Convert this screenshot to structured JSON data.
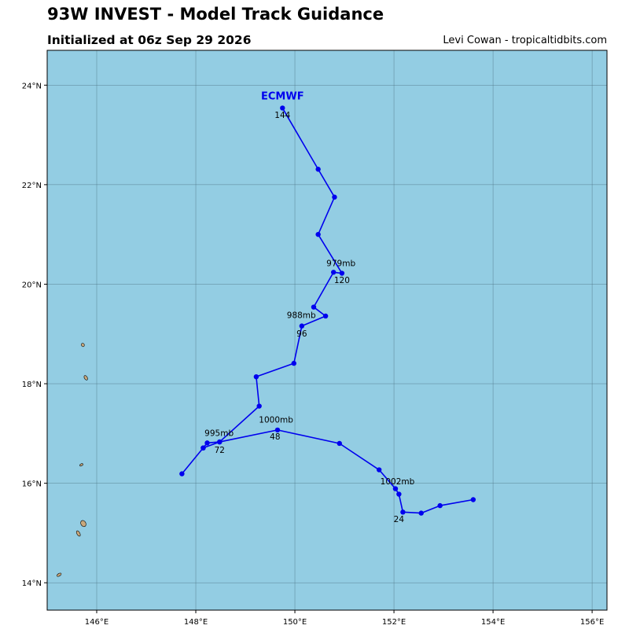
{
  "header": {
    "title": "93W INVEST - Model Track Guidance",
    "subtitle": "Initialized at 06z Sep 29 2026",
    "credit": "Levi Cowan - tropicaltidbits.com"
  },
  "colors": {
    "ocean": "#93cde3",
    "track": "#0000ee",
    "land": "#c9a87c",
    "grid": "#4a6f80"
  },
  "map": {
    "lon_range": [
      145.0,
      156.3
    ],
    "lat_range": [
      13.45,
      24.7
    ],
    "lon_ticks": [
      {
        "value": 146,
        "label": "146°E"
      },
      {
        "value": 148,
        "label": "148°E"
      },
      {
        "value": 150,
        "label": "150°E"
      },
      {
        "value": 152,
        "label": "152°E"
      },
      {
        "value": 154,
        "label": "154°E"
      },
      {
        "value": 156,
        "label": "156°E"
      }
    ],
    "lat_ticks": [
      {
        "value": 14,
        "label": "14°N"
      },
      {
        "value": 16,
        "label": "16°N"
      },
      {
        "value": 18,
        "label": "18°N"
      },
      {
        "value": 20,
        "label": "20°N"
      },
      {
        "value": 22,
        "label": "22°N"
      },
      {
        "value": 24,
        "label": "24°N"
      }
    ],
    "grid": true,
    "islands": [
      {
        "name": "island-a",
        "lon": 145.72,
        "lat": 18.78,
        "w": 0.06,
        "h": 0.07
      },
      {
        "name": "island-b",
        "lon": 145.78,
        "lat": 18.12,
        "w": 0.06,
        "h": 0.1
      },
      {
        "name": "island-c",
        "lon": 145.69,
        "lat": 16.37,
        "w": 0.07,
        "h": 0.04
      },
      {
        "name": "island-d",
        "lon": 145.73,
        "lat": 15.19,
        "w": 0.1,
        "h": 0.13
      },
      {
        "name": "island-e",
        "lon": 145.63,
        "lat": 14.99,
        "w": 0.06,
        "h": 0.12
      },
      {
        "name": "island-f",
        "lon": 145.24,
        "lat": 14.16,
        "w": 0.1,
        "h": 0.05
      }
    ]
  },
  "chart_data": {
    "type": "line",
    "series": [
      {
        "name": "ECMWF",
        "points": [
          {
            "lon": 153.6,
            "lat": 15.67
          },
          {
            "lon": 152.93,
            "lat": 15.55
          },
          {
            "lon": 152.55,
            "lat": 15.4
          },
          {
            "lon": 152.18,
            "lat": 15.42
          },
          {
            "lon": 152.1,
            "lat": 15.78
          },
          {
            "lon": 152.03,
            "lat": 15.89
          },
          {
            "lon": 151.7,
            "lat": 16.27
          },
          {
            "lon": 150.9,
            "lat": 16.8
          },
          {
            "lon": 149.65,
            "lat": 17.07
          },
          {
            "lon": 148.48,
            "lat": 16.83
          },
          {
            "lon": 148.23,
            "lat": 16.81
          },
          {
            "lon": 148.15,
            "lat": 16.71
          },
          {
            "lon": 147.72,
            "lat": 16.19
          },
          {
            "lon": 148.15,
            "lat": 16.71
          },
          {
            "lon": 148.48,
            "lat": 16.83
          },
          {
            "lon": 149.28,
            "lat": 17.55
          },
          {
            "lon": 149.22,
            "lat": 18.14
          },
          {
            "lon": 149.98,
            "lat": 18.41
          },
          {
            "lon": 150.14,
            "lat": 19.16
          },
          {
            "lon": 150.62,
            "lat": 19.36
          },
          {
            "lon": 150.38,
            "lat": 19.54
          },
          {
            "lon": 150.78,
            "lat": 20.24
          },
          {
            "lon": 150.95,
            "lat": 20.22
          },
          {
            "lon": 150.47,
            "lat": 21.0
          },
          {
            "lon": 150.8,
            "lat": 21.75
          },
          {
            "lon": 150.47,
            "lat": 22.31
          },
          {
            "lon": 149.75,
            "lat": 23.54
          }
        ],
        "annotations": [
          {
            "text": "1002mb",
            "lon": 152.07,
            "lat": 15.98
          },
          {
            "text": "24",
            "lon": 152.1,
            "lat": 15.22
          },
          {
            "text": "1000mb",
            "lon": 149.62,
            "lat": 17.22
          },
          {
            "text": "48",
            "lon": 149.6,
            "lat": 16.88
          },
          {
            "text": "995mb",
            "lon": 148.47,
            "lat": 16.95
          },
          {
            "text": "72",
            "lon": 148.48,
            "lat": 16.61
          },
          {
            "text": "988mb",
            "lon": 150.13,
            "lat": 19.32
          },
          {
            "text": "96",
            "lon": 150.14,
            "lat": 18.95
          },
          {
            "text": "979mb",
            "lon": 150.93,
            "lat": 20.36
          },
          {
            "text": "120",
            "lon": 150.95,
            "lat": 20.02
          },
          {
            "text": "144",
            "lon": 149.75,
            "lat": 23.34
          }
        ]
      }
    ]
  }
}
